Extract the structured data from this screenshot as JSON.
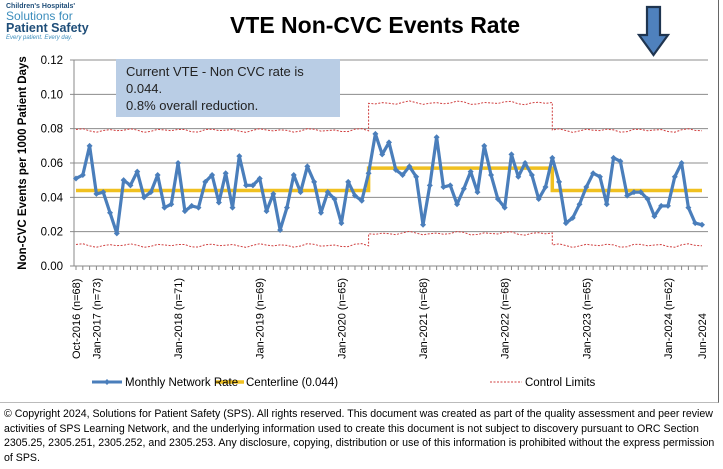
{
  "logo": {
    "line1": "Children's Hospitals'",
    "line2": "Solutions for",
    "line3": "Patient Safety",
    "line4": "Every patient. Every day."
  },
  "annotation": {
    "line1": "Current VTE - Non CVC rate is",
    "line2": "0.044.",
    "line3": "0.8% overall reduction."
  },
  "arrow": {
    "icon": "down-arrow-icon",
    "color": "#4f81bd"
  },
  "footer": "© Copyright 2024, Solutions for Patient Safety (SPS).  All rights reserved.  This document was created as part of the quality assessment and peer review activities of SPS Learning Network, and the underlying information used to create this document is not subject to discovery pursuant to ORC Section 2305.25, 2305.251, 2305.252, and 2305.253. Any disclosure, copying, distribution or use of this information is prohibited without the express permission of SPS.",
  "chart_data": {
    "type": "line",
    "title": "VTE Non-CVC Events Rate",
    "ylabel": "Non-CVC Events per 1000 Patient Days",
    "xlabel": "",
    "ylim": [
      0,
      0.12
    ],
    "yticks": [
      "0.00",
      "0.02",
      "0.04",
      "0.06",
      "0.08",
      "0.10",
      "0.12"
    ],
    "x_start": "Oct-2016",
    "x_end": "Jun-2024",
    "xtick_labels": [
      {
        "index": 0,
        "label": "Oct-2016 (n=68)"
      },
      {
        "index": 3,
        "label": "Jan-2017 (n=73)"
      },
      {
        "index": 15,
        "label": "Jan-2018 (n=71)"
      },
      {
        "index": 27,
        "label": "Jan-2019 (n=69)"
      },
      {
        "index": 39,
        "label": "Jan-2020 (n=65)"
      },
      {
        "index": 51,
        "label": "Jan-2021 (n=68)"
      },
      {
        "index": 63,
        "label": "Jan-2022 (n=68)"
      },
      {
        "index": 75,
        "label": "Jan-2023 (n=65)"
      },
      {
        "index": 87,
        "label": "Jan-2024 (n=62)"
      },
      {
        "index": 92,
        "label": "Jun-2024"
      }
    ],
    "grid": true,
    "legend": {
      "position": "bottom",
      "entries": [
        "Monthly Network Rate",
        "Centerline (0.044)",
        "Control Limits"
      ]
    },
    "colors": {
      "rate": "#4a7ebb",
      "centerline": "#f0c020",
      "limits": "#d04040"
    },
    "series": [
      {
        "name": "Monthly Network Rate",
        "values": [
          0.051,
          0.053,
          0.07,
          0.042,
          0.043,
          0.031,
          0.019,
          0.05,
          0.047,
          0.055,
          0.04,
          0.043,
          0.053,
          0.034,
          0.036,
          0.06,
          0.032,
          0.035,
          0.034,
          0.049,
          0.053,
          0.037,
          0.054,
          0.034,
          0.064,
          0.047,
          0.047,
          0.051,
          0.032,
          0.042,
          0.021,
          0.034,
          0.053,
          0.043,
          0.058,
          0.049,
          0.031,
          0.043,
          0.039,
          0.025,
          0.049,
          0.041,
          0.038,
          0.054,
          0.077,
          0.065,
          0.072,
          0.056,
          0.053,
          0.058,
          0.052,
          0.024,
          0.047,
          0.075,
          0.046,
          0.047,
          0.036,
          0.045,
          0.055,
          0.043,
          0.07,
          0.053,
          0.039,
          0.034,
          0.065,
          0.052,
          0.06,
          0.053,
          0.039,
          0.046,
          0.063,
          0.049,
          0.025,
          0.028,
          0.036,
          0.046,
          0.054,
          0.052,
          0.036,
          0.063,
          0.061,
          0.041,
          0.043,
          0.043,
          0.039,
          0.029,
          0.035,
          0.035,
          0.052,
          0.06,
          0.034,
          0.025,
          0.024
        ]
      }
    ],
    "phases": [
      {
        "start": 0,
        "end": 43,
        "centerline": 0.044,
        "ucl": 0.079,
        "lcl": 0.012
      },
      {
        "start": 43,
        "end": 70,
        "centerline": 0.057,
        "ucl": 0.095,
        "lcl": 0.019
      },
      {
        "start": 70,
        "end": 92,
        "centerline": 0.044,
        "ucl": 0.079,
        "lcl": 0.012
      }
    ]
  }
}
